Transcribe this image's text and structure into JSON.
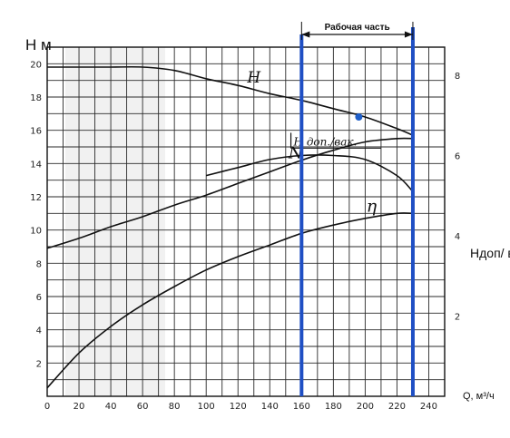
{
  "chart_data": {
    "type": "line",
    "title": "",
    "ylabel_left": "H м",
    "ylabel_right": "Hдоп/ вак",
    "xlabel": "Q, м³/ч",
    "xlim": [
      0,
      250
    ],
    "ylim": [
      0,
      21
    ],
    "y2lim": [
      0,
      8.7
    ],
    "x_ticks": [
      0,
      20,
      40,
      60,
      80,
      100,
      120,
      140,
      160,
      180,
      200,
      220,
      240
    ],
    "y_ticks": [
      2,
      4,
      6,
      8,
      10,
      12,
      14,
      16,
      18,
      20
    ],
    "y2_ticks": [
      2,
      4,
      6,
      8
    ],
    "grid": true,
    "working_range": {
      "label": "Рабочая часть",
      "x": [
        160,
        230
      ]
    },
    "marker_point": {
      "x": 196,
      "y": 16.8
    },
    "series": [
      {
        "name": "H",
        "axis": "left",
        "x": [
          0,
          20,
          40,
          60,
          80,
          100,
          120,
          140,
          160,
          180,
          200,
          220,
          230
        ],
        "y": [
          19.8,
          19.8,
          19.8,
          19.8,
          19.6,
          19.1,
          18.7,
          18.2,
          17.8,
          17.3,
          16.8,
          16.1,
          15.7
        ]
      },
      {
        "name": "N",
        "axis": "left",
        "x": [
          0,
          20,
          40,
          60,
          80,
          100,
          120,
          140,
          160,
          180,
          200,
          220,
          230
        ],
        "y": [
          8.9,
          9.5,
          10.2,
          10.8,
          11.5,
          12.1,
          12.8,
          13.5,
          14.2,
          14.8,
          15.3,
          15.5,
          15.5
        ]
      },
      {
        "name": "η",
        "axis": "left",
        "x": [
          0,
          20,
          40,
          60,
          80,
          100,
          120,
          140,
          160,
          180,
          200,
          220,
          230
        ],
        "y": [
          0.5,
          2.6,
          4.2,
          5.5,
          6.6,
          7.6,
          8.4,
          9.1,
          9.8,
          10.3,
          10.7,
          11.0,
          11.0
        ]
      },
      {
        "name": "H доп./вак.",
        "axis": "right",
        "x": [
          100,
          120,
          140,
          160,
          180,
          200,
          220,
          230
        ],
        "y": [
          5.5,
          5.7,
          5.9,
          6.0,
          6.0,
          5.9,
          5.5,
          5.1
        ]
      }
    ]
  }
}
